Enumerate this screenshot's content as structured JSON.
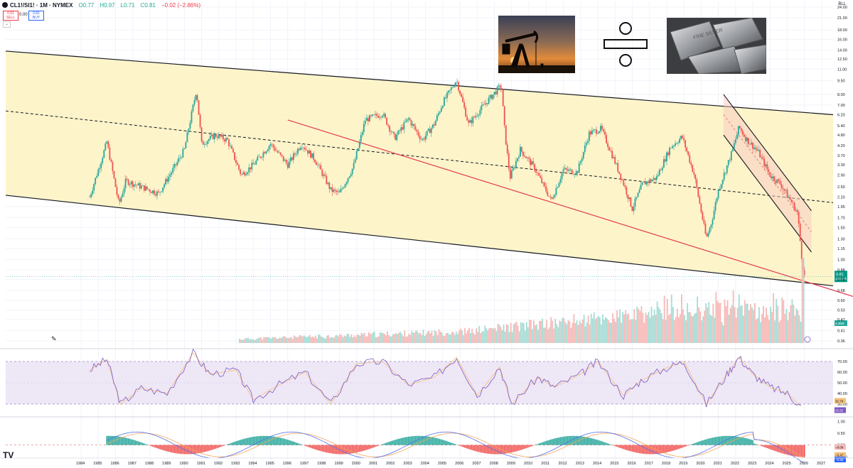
{
  "header": {
    "symbol": "CL1!/SI1! · 1M · NYMEX",
    "open": "O0.77",
    "high": "H0.97",
    "low": "L0.71",
    "close": "C0.81",
    "change": "−0.02 (−2.86%)",
    "sell_price": "0.81",
    "sell_label": "SELL",
    "spread": "0.00",
    "buy_price": "0.81",
    "buy_label": "BUY"
  },
  "currency": "BLL",
  "price_tag": "0.81",
  "price_tag_sub": "15d 20h",
  "volume_tag": "4.46M",
  "rsi_tag_1": "32.79",
  "rsi_tag_2": "25.82",
  "macd_tag_1": "−0.08",
  "macd_tag_2": "−0.47",
  "macd_tag_3": "−0.55",
  "colors": {
    "channel_fill": "#fdf3c4",
    "up": "#26a69a",
    "down": "#ef5350",
    "red_line": "#e53950",
    "rsi_fill": "#ede7f6",
    "rsi_line": "#7e57c2"
  },
  "chart_data": [
    {
      "type": "line",
      "title": "",
      "scale": "log",
      "y_ticks": [
        "24.00",
        "21.00",
        "18.00",
        "16.00",
        "14.00",
        "12.50",
        "11.00",
        "9.50",
        "8.00",
        "7.00",
        "6.20",
        "5.40",
        "4.80",
        "4.20",
        "3.70",
        "3.30",
        "2.90",
        "2.50",
        "2.20",
        "1.95",
        "1.70",
        "1.50",
        "1.30",
        "1.15",
        "1.00",
        "0.88",
        "0.78",
        "0.68",
        "0.60",
        "0.53",
        "0.47",
        "0.41",
        "0.36"
      ],
      "x_ticks": [
        "1984",
        "1985",
        "1986",
        "1987",
        "1988",
        "1989",
        "1990",
        "1991",
        "1992",
        "1993",
        "1994",
        "1995",
        "1996",
        "1997",
        "1998",
        "1999",
        "2000",
        "2001",
        "2002",
        "2003",
        "2004",
        "2005",
        "2006",
        "2007",
        "2008",
        "2009",
        "2010",
        "2011",
        "2012",
        "2013",
        "2014",
        "2015",
        "2016",
        "2017",
        "2018",
        "2019",
        "2020",
        "2021",
        "2022",
        "2023",
        "2024",
        "2025",
        "2026",
        "2027"
      ],
      "series": [
        {
          "x": [
            1984.5,
            1985.0,
            1985.5,
            1986.2,
            1986.6,
            1987.5,
            1988.5,
            1989.5,
            1990.0,
            1990.7,
            1991.0,
            1991.8,
            1992.5,
            1993.3,
            1994.0,
            1995.0,
            1996.0,
            1996.8,
            1997.6,
            1998.5,
            1999.0,
            1999.8,
            2000.5,
            2001.5,
            2002.2,
            2003.0,
            2003.8,
            2004.5,
            2005.0,
            2005.8,
            2006.5,
            2007.5,
            2008.4,
            2008.6,
            2008.9,
            2009.5,
            2010.3,
            2011.3,
            2012.0,
            2012.8,
            2013.5,
            2014.2,
            2014.8,
            2015.5,
            2016.0,
            2016.6,
            2017.4,
            2018.2,
            2018.9,
            2019.6,
            2020.3,
            2020.6,
            2021.0,
            2021.8,
            2022.2,
            2022.6,
            2023.3,
            2024.0,
            2024.6,
            2025.2,
            2025.6,
            2025.85,
            2026.0
          ],
          "values": [
            2.2,
            3.1,
            4.4,
            2.0,
            2.7,
            2.5,
            2.3,
            3.3,
            4.0,
            8.5,
            4.3,
            4.8,
            4.5,
            2.9,
            3.3,
            4.3,
            3.3,
            4.3,
            3.5,
            2.4,
            2.3,
            3.2,
            5.8,
            6.3,
            4.6,
            5.9,
            4.5,
            5.5,
            7.2,
            9.6,
            5.5,
            7.2,
            9.0,
            5.0,
            2.8,
            4.0,
            3.2,
            2.1,
            3.1,
            3.0,
            4.9,
            5.2,
            3.8,
            2.6,
            1.9,
            2.6,
            2.8,
            4.1,
            4.7,
            2.9,
            1.3,
            1.6,
            2.4,
            3.9,
            5.3,
            4.6,
            3.9,
            2.9,
            2.6,
            2.1,
            1.8,
            1.0,
            0.81
          ],
          "name": ""
        }
      ],
      "annotations": [
        "descending yellow channel",
        "red trendline",
        "dashed midline",
        "descending sub-channel"
      ]
    },
    {
      "type": "line",
      "title": "",
      "y_ticks": [
        "70.00",
        "60.00",
        "50.00",
        "40.00",
        "30.00"
      ],
      "ylim": [
        20,
        80
      ],
      "series": [
        {
          "x": [
            1984.5,
            1985.5,
            1986.3,
            1987.5,
            1989.0,
            1990.5,
            1991.5,
            1993.0,
            1994.0,
            1995.5,
            1997.0,
            1998.5,
            2000.0,
            2001.5,
            2003.0,
            2004.5,
            2005.8,
            2007.0,
            2008.3,
            2009.0,
            2010.5,
            2011.5,
            2013.0,
            2014.0,
            2015.5,
            2016.5,
            2018.0,
            2019.0,
            2020.3,
            2021.5,
            2022.2,
            2023.0,
            2024.0,
            2025.0,
            2025.9
          ],
          "values": [
            62,
            72,
            30,
            45,
            40,
            78,
            58,
            62,
            34,
            48,
            60,
            30,
            68,
            70,
            48,
            55,
            74,
            38,
            65,
            30,
            55,
            46,
            58,
            70,
            38,
            52,
            64,
            70,
            30,
            58,
            74,
            58,
            46,
            40,
            26
          ],
          "name": ""
        }
      ]
    },
    {
      "type": "bar",
      "title": "",
      "y_ticks": [
        "1.00",
        "0.50",
        "0.00",
        "−0.50"
      ],
      "ylim": [
        -0.7,
        1.1
      ]
    }
  ]
}
